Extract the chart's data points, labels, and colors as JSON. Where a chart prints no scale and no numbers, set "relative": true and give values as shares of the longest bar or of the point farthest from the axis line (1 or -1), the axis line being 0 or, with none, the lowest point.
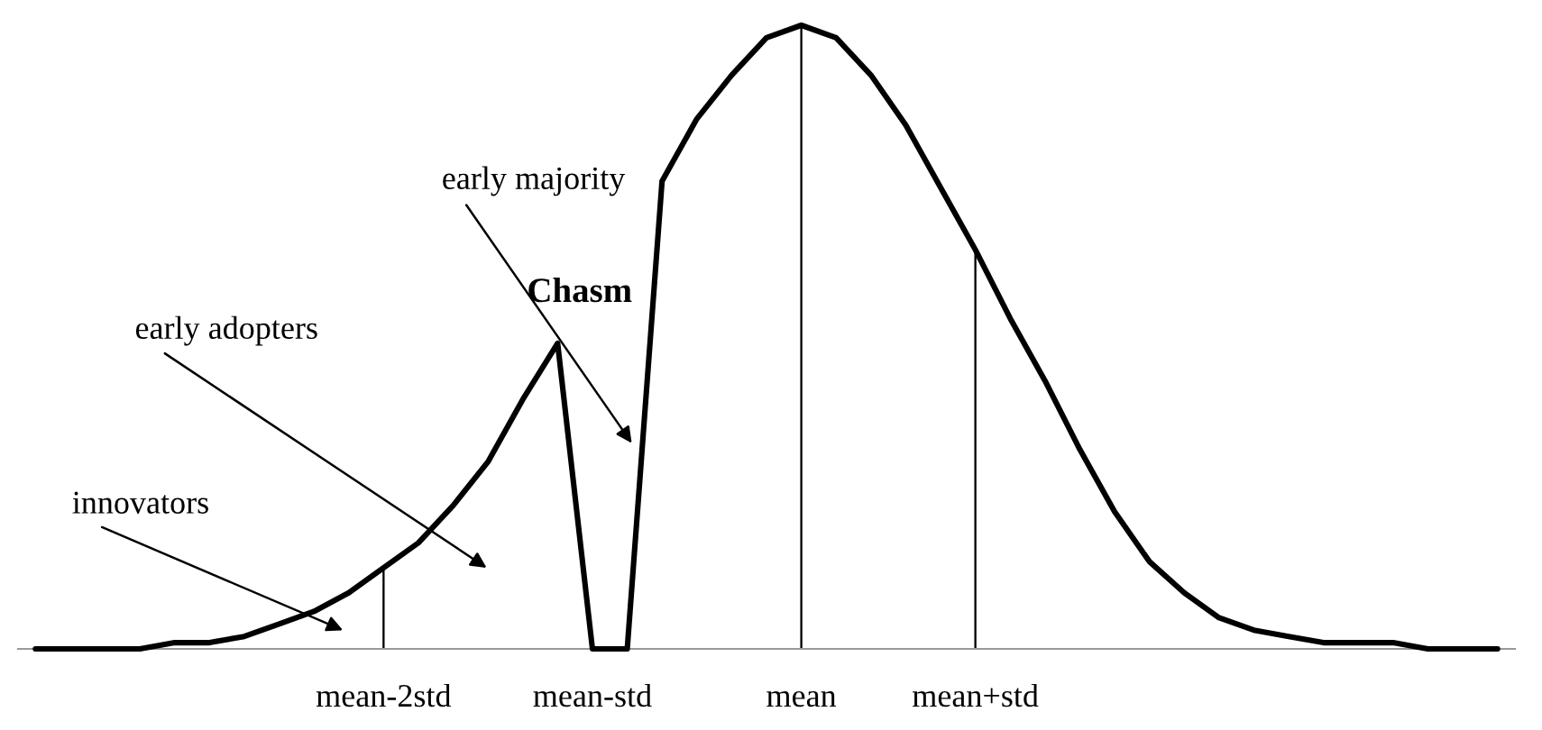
{
  "chart_data": {
    "type": "line",
    "relative": true,
    "grid": false,
    "legend": false,
    "marker": "none",
    "line_style": "solid",
    "categories": [
      null,
      null,
      null,
      null,
      null,
      null,
      null,
      null,
      null,
      null,
      "mean-2std",
      null,
      null,
      null,
      null,
      null,
      "mean-std",
      null,
      null,
      null,
      null,
      null,
      "mean",
      null,
      null,
      null,
      null,
      "mean+std",
      null,
      null,
      null,
      null,
      null,
      null,
      null,
      null,
      null,
      null,
      null,
      null,
      null,
      null,
      null
    ],
    "series": [
      {
        "color": "#000000",
        "values": [
          0,
          0,
          0,
          0,
          0.01,
          0.01,
          0.02,
          0.04,
          0.06,
          0.09,
          0.13,
          0.17,
          0.23,
          0.3,
          0.4,
          0.49,
          0,
          0,
          0.75,
          0.85,
          0.92,
          0.98,
          1,
          0.98,
          0.92,
          0.84,
          0.74,
          0.64,
          0.53,
          0.43,
          0.32,
          0.22,
          0.14,
          0.09,
          0.05,
          0.03,
          0.02,
          0.01,
          0.01,
          0.01,
          0,
          0,
          0
        ]
      },
      {
        "type": "bar",
        "color": "#000000",
        "values": [
          null,
          null,
          null,
          null,
          null,
          null,
          null,
          null,
          null,
          null,
          0.13,
          null,
          null,
          null,
          null,
          null,
          null,
          null,
          null,
          null,
          null,
          null,
          1,
          null,
          null,
          null,
          null,
          0.64,
          null,
          null,
          null,
          null,
          null,
          null,
          null,
          null,
          null,
          null,
          null,
          null,
          null,
          null,
          null
        ]
      }
    ],
    "annotations": [
      "innovators",
      "early adopters",
      "Chasm",
      "early majority"
    ]
  }
}
